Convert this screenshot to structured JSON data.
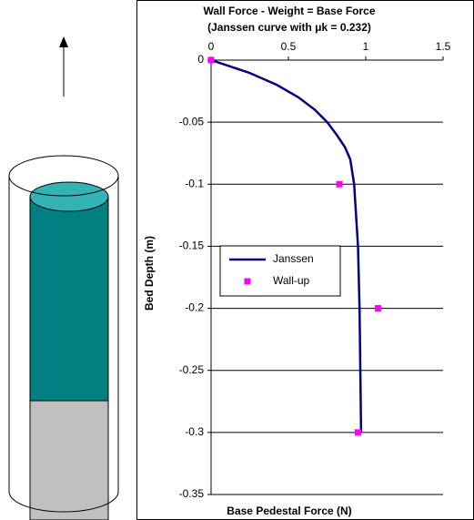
{
  "chart_data": {
    "type": "line",
    "title": "Wall Force - Weight = Base Force",
    "subtitle": "(Janssen curve with μk = 0.232)",
    "x_label": "Base Pedestal Force (N)",
    "y_label": "Bed Depth (m)",
    "xlim": [
      0,
      1.5
    ],
    "ylim": [
      -0.35,
      0
    ],
    "xticks": [
      0,
      0.5,
      1,
      1.5
    ],
    "yticks": [
      0,
      -0.05,
      -0.1,
      -0.15,
      -0.2,
      -0.25,
      -0.3,
      -0.35
    ],
    "grid": true,
    "legend": "left",
    "series": [
      {
        "name": "Janssen",
        "color": "#000080",
        "style": "line",
        "x": [
          0,
          0.243,
          0.426,
          0.565,
          0.671,
          0.751,
          0.811,
          0.865,
          0.9,
          0.925,
          0.95,
          0.96,
          0.965,
          0.97
        ],
        "values": [
          0,
          -0.01,
          -0.02,
          -0.03,
          -0.04,
          -0.05,
          -0.06,
          -0.07,
          -0.08,
          -0.1,
          -0.15,
          -0.2,
          -0.25,
          -0.3
        ]
      },
      {
        "name": "Wall-up",
        "color": "#ff00ff",
        "style": "marker",
        "x": [
          0,
          0.83,
          1.08,
          0.95
        ],
        "values": [
          0,
          -0.1,
          -0.2,
          -0.3
        ]
      }
    ]
  }
}
